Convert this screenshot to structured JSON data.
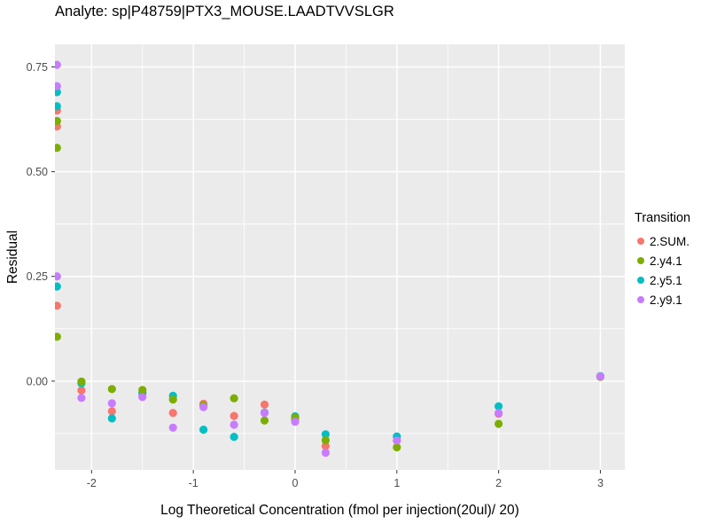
{
  "title": "Analyte: sp|P48759|PTX3_MOUSE.LAADTVVSLGR",
  "axes": {
    "x_label": "Log Theoretical Concentration (fmol per injection(20ul)/ 20)",
    "y_label": "Residual",
    "x_ticks": [
      {
        "value": -2,
        "label": "-2"
      },
      {
        "value": -1,
        "label": "-1"
      },
      {
        "value": 0,
        "label": "0"
      },
      {
        "value": 1,
        "label": "1"
      },
      {
        "value": 2,
        "label": "2"
      },
      {
        "value": 3,
        "label": "3"
      }
    ],
    "y_ticks": [
      {
        "value": 0.0,
        "label": "0.00"
      },
      {
        "value": 0.25,
        "label": "0.25"
      },
      {
        "value": 0.5,
        "label": "0.50"
      },
      {
        "value": 0.75,
        "label": "0.75"
      }
    ]
  },
  "legend": {
    "title": "Transition",
    "items": [
      {
        "label": "2.SUM.",
        "color": "#F8766D"
      },
      {
        "label": "2.y4.1",
        "color": "#7CAE00"
      },
      {
        "label": "2.y5.1",
        "color": "#00BFC4"
      },
      {
        "label": "2.y9.1",
        "color": "#C77CFF"
      }
    ]
  },
  "colors": {
    "panel_background": "#EBEBEB",
    "gridline": "#FFFFFF",
    "tick_mark": "#333333",
    "tick_label": "#4D4D4D"
  },
  "chart_data": {
    "type": "scatter",
    "title": "Analyte: sp|P48759|PTX3_MOUSE.LAADTVVSLGR",
    "xlabel": "Log Theoretical Concentration (fmol per injection(20ul)/ 20)",
    "ylabel": "Residual",
    "legend_title": "Transition",
    "legend_position": "right",
    "grid": "major-and-minor, white on gray panel",
    "xlim": [
      -2.36,
      3.24
    ],
    "ylim": [
      -0.212,
      0.804
    ],
    "x_minor_gridlines": [
      -1.5,
      -0.5,
      0.5,
      1.5,
      2.5
    ],
    "y_minor_gridlines": [
      -0.125,
      0.125,
      0.375,
      0.625
    ],
    "point_radius_px": 4.6,
    "draw_order": [
      0,
      2,
      1,
      3
    ],
    "series": [
      {
        "name": "2.SUM.",
        "color": "#F8766D",
        "points": [
          [
            -2.34,
            0.646
          ],
          [
            -2.34,
            0.608
          ],
          [
            -2.34,
            0.18
          ],
          [
            -2.1,
            -0.022
          ],
          [
            -1.8,
            -0.072
          ],
          [
            -1.5,
            -0.03
          ],
          [
            -1.2,
            -0.076
          ],
          [
            -0.9,
            -0.054
          ],
          [
            -0.6,
            -0.083
          ],
          [
            -0.3,
            -0.056
          ],
          [
            0.0,
            -0.092
          ],
          [
            0.3,
            -0.155
          ],
          [
            1.0,
            -0.142
          ],
          [
            2.0,
            -0.078
          ],
          [
            3.0,
            0.011
          ]
        ]
      },
      {
        "name": "2.y4.1",
        "color": "#7CAE00",
        "points": [
          [
            -2.34,
            0.621
          ],
          [
            -2.34,
            0.557
          ],
          [
            -2.34,
            0.106
          ],
          [
            -2.1,
            -0.001
          ],
          [
            -1.8,
            -0.019
          ],
          [
            -1.5,
            -0.021
          ],
          [
            -1.2,
            -0.044
          ],
          [
            -0.9,
            -0.058
          ],
          [
            -0.6,
            -0.041
          ],
          [
            -0.3,
            -0.094
          ],
          [
            0.0,
            -0.087
          ],
          [
            0.3,
            -0.141
          ],
          [
            1.0,
            -0.158
          ],
          [
            2.0,
            -0.102
          ],
          [
            3.0,
            0.01
          ]
        ]
      },
      {
        "name": "2.y5.1",
        "color": "#00BFC4",
        "points": [
          [
            -2.34,
            0.69
          ],
          [
            -2.34,
            0.656
          ],
          [
            -2.34,
            0.226
          ],
          [
            -2.1,
            -0.005
          ],
          [
            -1.8,
            -0.089
          ],
          [
            -1.5,
            -0.028
          ],
          [
            -1.2,
            -0.035
          ],
          [
            -0.9,
            -0.116
          ],
          [
            -0.6,
            -0.133
          ],
          [
            -0.3,
            -0.075
          ],
          [
            0.0,
            -0.084
          ],
          [
            0.3,
            -0.127
          ],
          [
            1.0,
            -0.132
          ],
          [
            2.0,
            -0.06
          ],
          [
            3.0,
            0.012
          ]
        ]
      },
      {
        "name": "2.y9.1",
        "color": "#C77CFF",
        "points": [
          [
            -2.34,
            0.755
          ],
          [
            -2.34,
            0.704
          ],
          [
            -2.34,
            0.25
          ],
          [
            -2.1,
            -0.04
          ],
          [
            -1.8,
            -0.053
          ],
          [
            -1.5,
            -0.038
          ],
          [
            -1.2,
            -0.111
          ],
          [
            -0.9,
            -0.062
          ],
          [
            -0.6,
            -0.104
          ],
          [
            -0.3,
            -0.076
          ],
          [
            0.0,
            -0.097
          ],
          [
            0.3,
            -0.171
          ],
          [
            1.0,
            -0.142
          ],
          [
            2.0,
            -0.076
          ],
          [
            3.0,
            0.011
          ]
        ]
      }
    ]
  }
}
